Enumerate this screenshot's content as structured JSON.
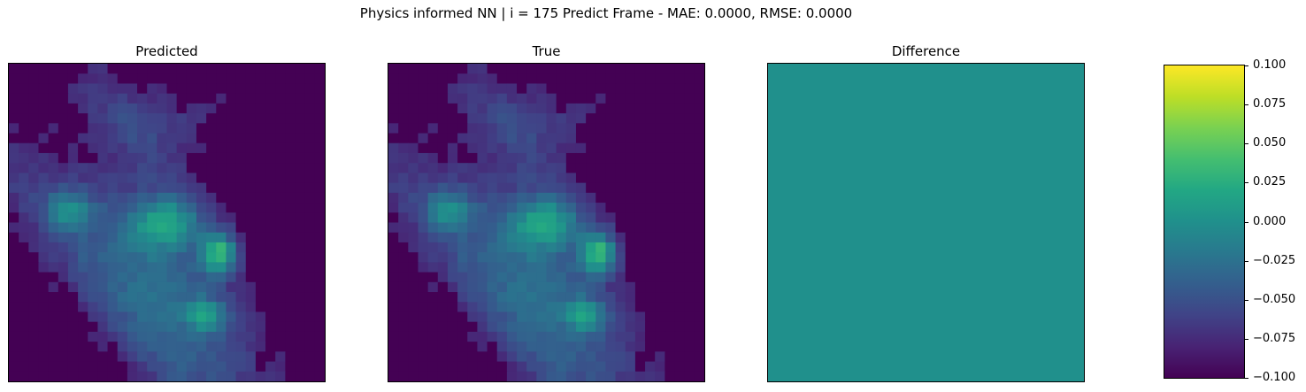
{
  "figure": {
    "suptitle": "Physics informed NN | i = 175 Predict Frame - MAE: 0.0000, RMSE: 0.0000"
  },
  "chart_data": {
    "type": "heatmap",
    "colormap": "viridis",
    "grid": "off",
    "vmin": -0.1,
    "vmax": 0.1,
    "grid_size": [
      32,
      32
    ],
    "panels": [
      {
        "key": "predicted",
        "title": "Predicted"
      },
      {
        "key": "true",
        "title": "True"
      },
      {
        "key": "difference",
        "title": "Difference",
        "uniform_value": 0.0
      }
    ],
    "colorbar": {
      "ticks": [
        0.1,
        0.075,
        0.05,
        0.025,
        0.0,
        -0.025,
        -0.05,
        -0.075,
        -0.1
      ],
      "tick_labels": [
        "0.100",
        "0.075",
        "0.050",
        "0.025",
        "0.000",
        "−0.025",
        "−0.050",
        "−0.075",
        "−0.100"
      ]
    }
  }
}
